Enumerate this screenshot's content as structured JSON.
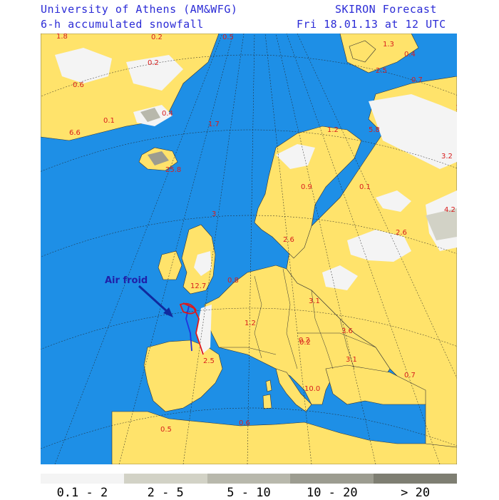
{
  "header": {
    "institution": "University of Athens (AM&WFG)",
    "product": "SKIRON Forecast",
    "field": "6-h accumulated snowfall",
    "valid_time": "Fri 18.01.13 at 12 UTC"
  },
  "annotation": {
    "text": "Air froid"
  },
  "map_values": [
    "1.8",
    "0.2",
    "0.5",
    "1.3",
    "0.4",
    "0.2",
    "0.6",
    "2.5",
    "0.7",
    "0.4",
    "0.1",
    "6.6",
    "1.2",
    "1.7",
    "5.8",
    "1.2",
    "3.2",
    "25.8",
    "0.9",
    "0.1",
    "4.2",
    "3",
    "2.6",
    "2.6",
    "12.7",
    "0.8",
    "1.2",
    "3.1",
    "0.2",
    "3.6",
    "0.2",
    "2.5",
    "3.1",
    "0.7",
    "10.0",
    "0.5",
    "0.6"
  ],
  "legend": {
    "items": [
      {
        "label": "0.1 - 2",
        "color": "#f4f4f4"
      },
      {
        "label": "2 - 5",
        "color": "#d2d2c6"
      },
      {
        "label": "5 - 10",
        "color": "#b8b8ac"
      },
      {
        "label": "10 - 20",
        "color": "#9c9c90"
      },
      {
        "label": "> 20",
        "color": "#7e7e72"
      }
    ]
  },
  "colors": {
    "sea": "#1e8fe6",
    "land": "#ffe36b",
    "snow": "#f4f4f4",
    "values": "#d81d1d",
    "header": "#2b2bd6"
  }
}
